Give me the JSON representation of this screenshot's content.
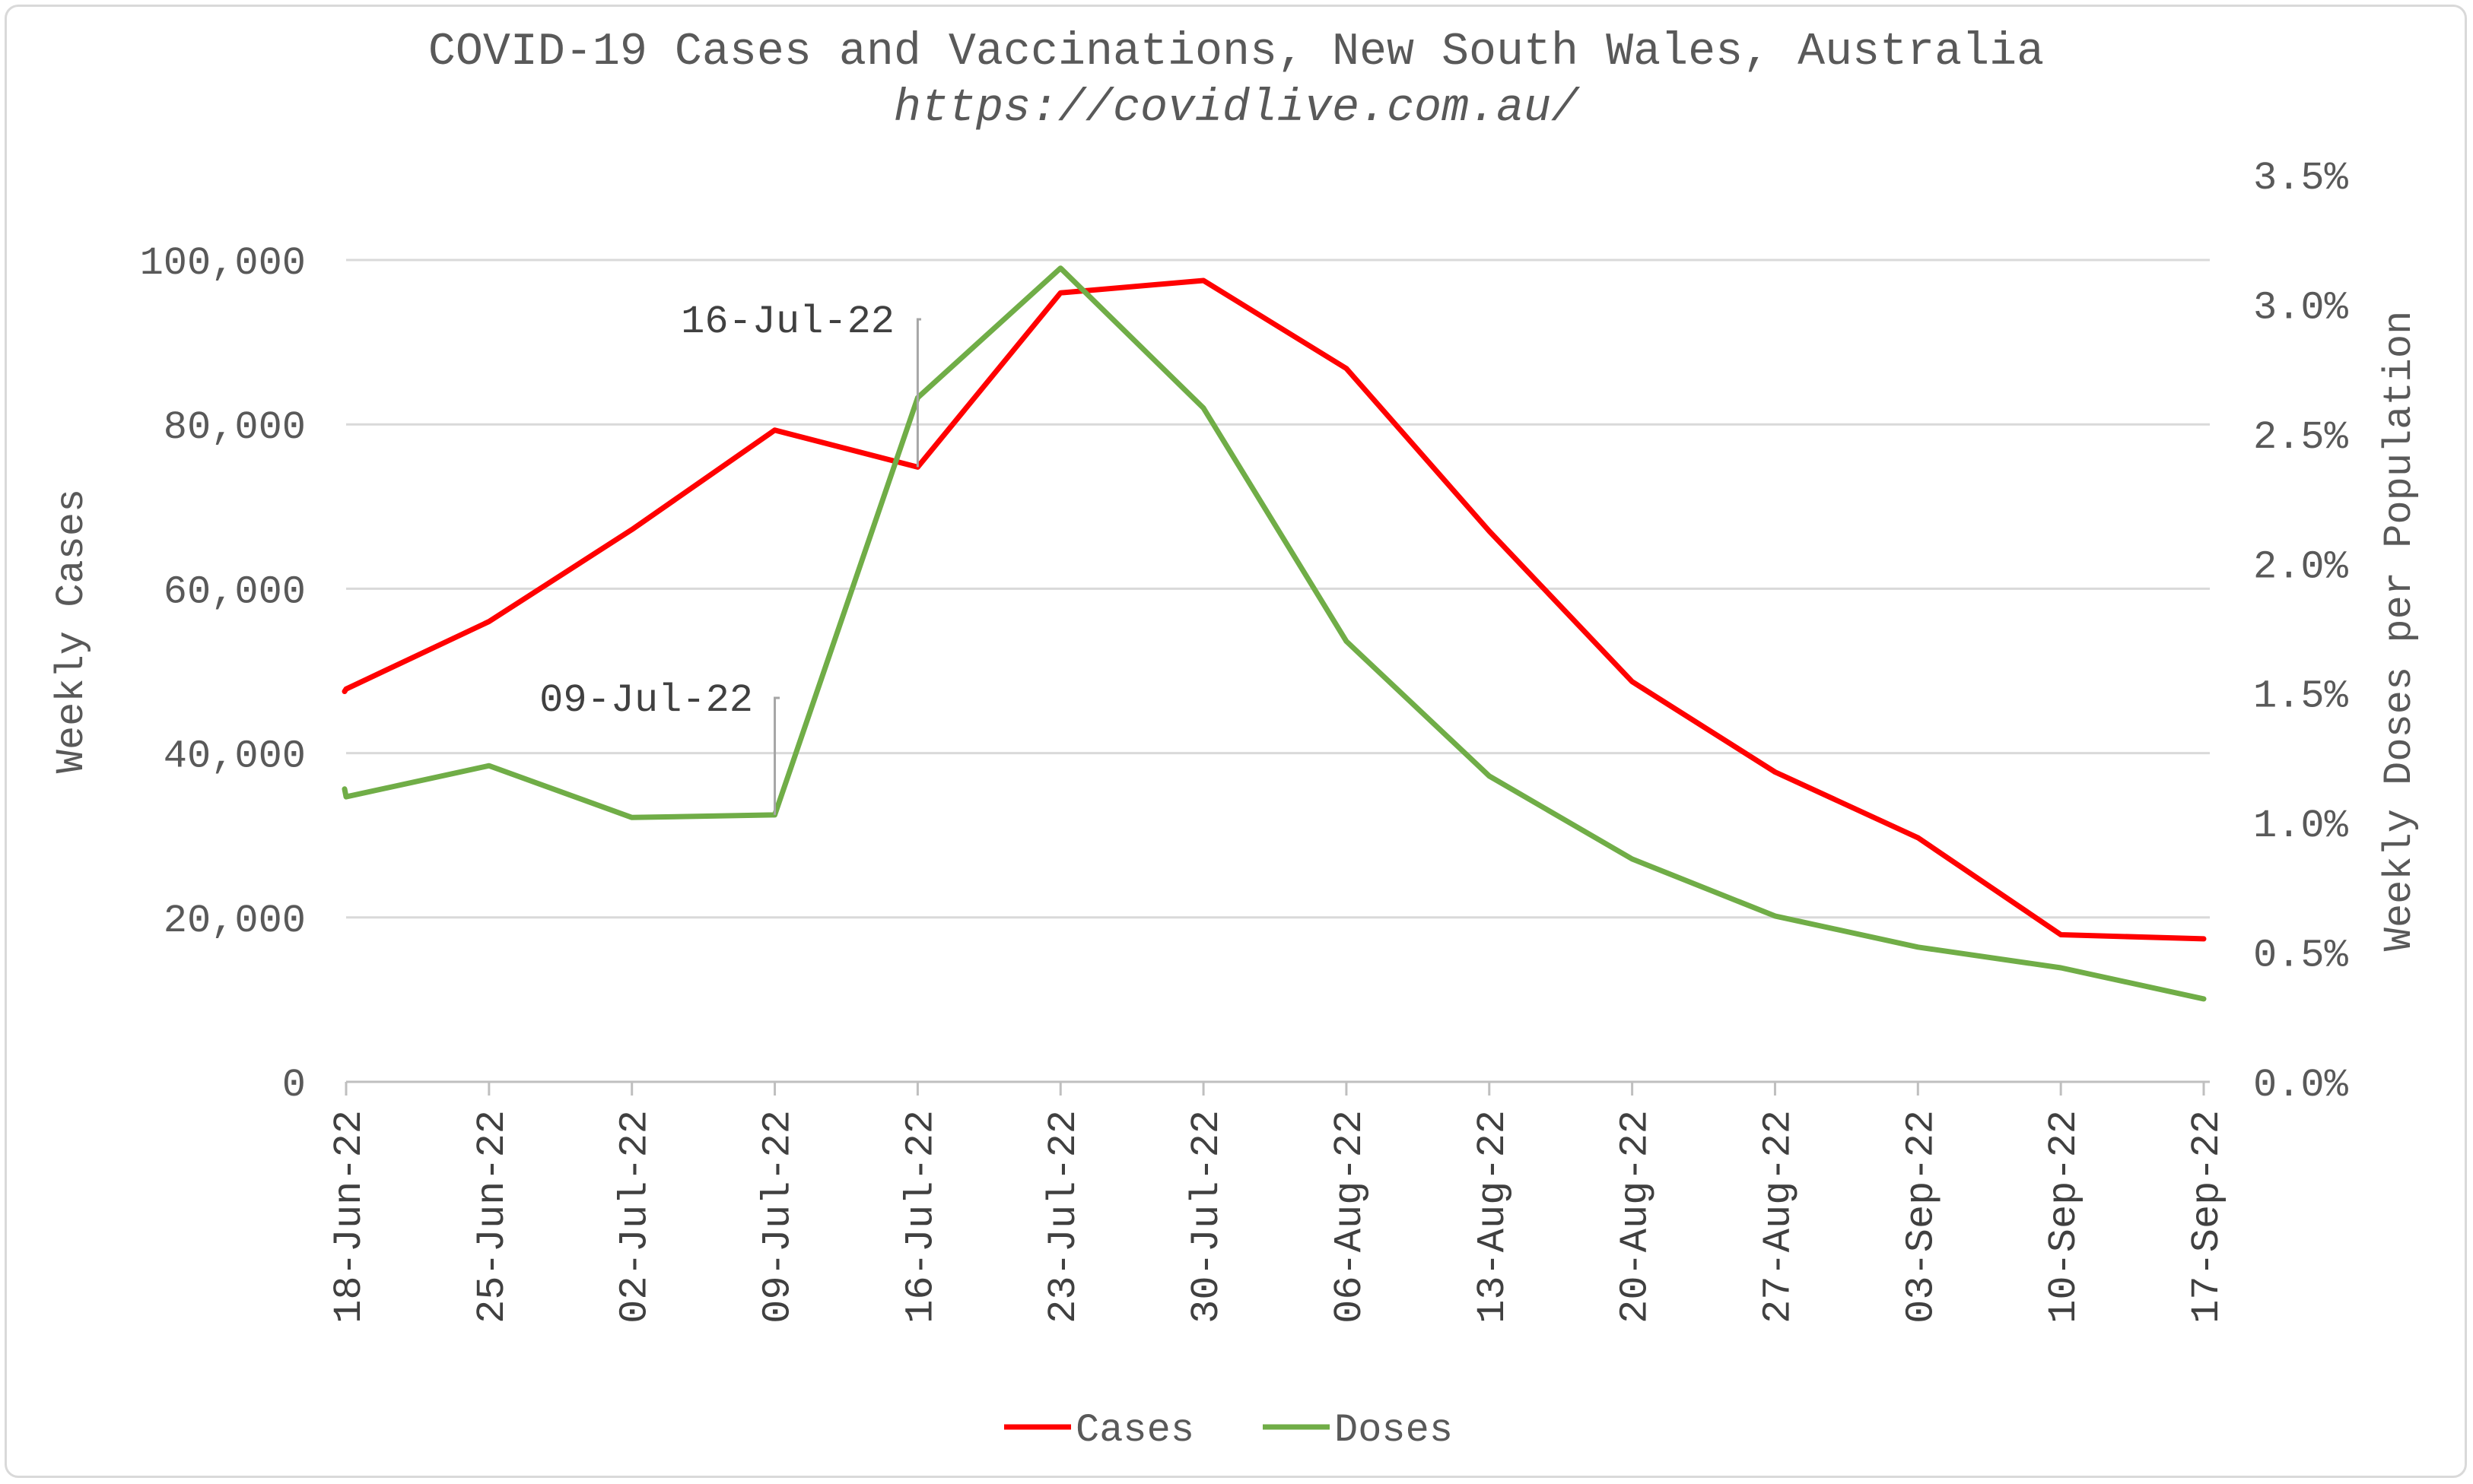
{
  "chart_data": {
    "type": "line",
    "title": "COVID-19 Cases and Vaccinations, New South Wales, Australia",
    "subtitle": "https://covidlive.com.au/",
    "ylabel_left": "Weekly Cases",
    "ylabel_right": "Weekly Doses per Population",
    "categories": [
      "18-Jun-22",
      "25-Jun-22",
      "02-Jul-22",
      "09-Jul-22",
      "16-Jul-22",
      "23-Jul-22",
      "30-Jul-22",
      "06-Aug-22",
      "13-Aug-22",
      "20-Aug-22",
      "27-Aug-22",
      "03-Sep-22",
      "10-Sep-22",
      "17-Sep-22"
    ],
    "y_left": {
      "min": 0,
      "max": 100000,
      "ticks": [
        0,
        20000,
        40000,
        60000,
        80000,
        100000
      ],
      "tick_labels": [
        "0",
        "20,000",
        "40,000",
        "60,000",
        "80,000",
        "100,000"
      ]
    },
    "y_right": {
      "min": 0,
      "max": 3.5,
      "ticks": [
        0,
        0.5,
        1.0,
        1.5,
        2.0,
        2.5,
        3.0,
        3.5
      ],
      "tick_labels": [
        "0.0%",
        "0.5%",
        "1.0%",
        "1.5%",
        "2.0%",
        "2.5%",
        "3.0%",
        "3.5%"
      ]
    },
    "series": [
      {
        "name": "Cases",
        "axis": "left",
        "color": "#ff0000",
        "start_value": 47500,
        "values": [
          47800,
          56000,
          67200,
          79300,
          74800,
          96000,
          97500,
          86800,
          67000,
          48700,
          37700,
          29700,
          17900,
          17400
        ]
      },
      {
        "name": "Doses",
        "axis": "right",
        "color": "#70ad47",
        "start_value": 1.13,
        "values": [
          1.1,
          1.22,
          1.02,
          1.03,
          2.64,
          3.14,
          2.6,
          1.7,
          1.18,
          0.86,
          0.64,
          0.52,
          0.44,
          0.32
        ]
      }
    ],
    "annotations": [
      {
        "label": "09-Jul-22",
        "category": "09-Jul-22",
        "series": "Doses"
      },
      {
        "label": "16-Jul-22",
        "category": "16-Jul-22",
        "series": "Cases"
      }
    ],
    "legend": {
      "position": "bottom",
      "entries": [
        "Cases",
        "Doses"
      ]
    },
    "grid": "horizontal"
  }
}
